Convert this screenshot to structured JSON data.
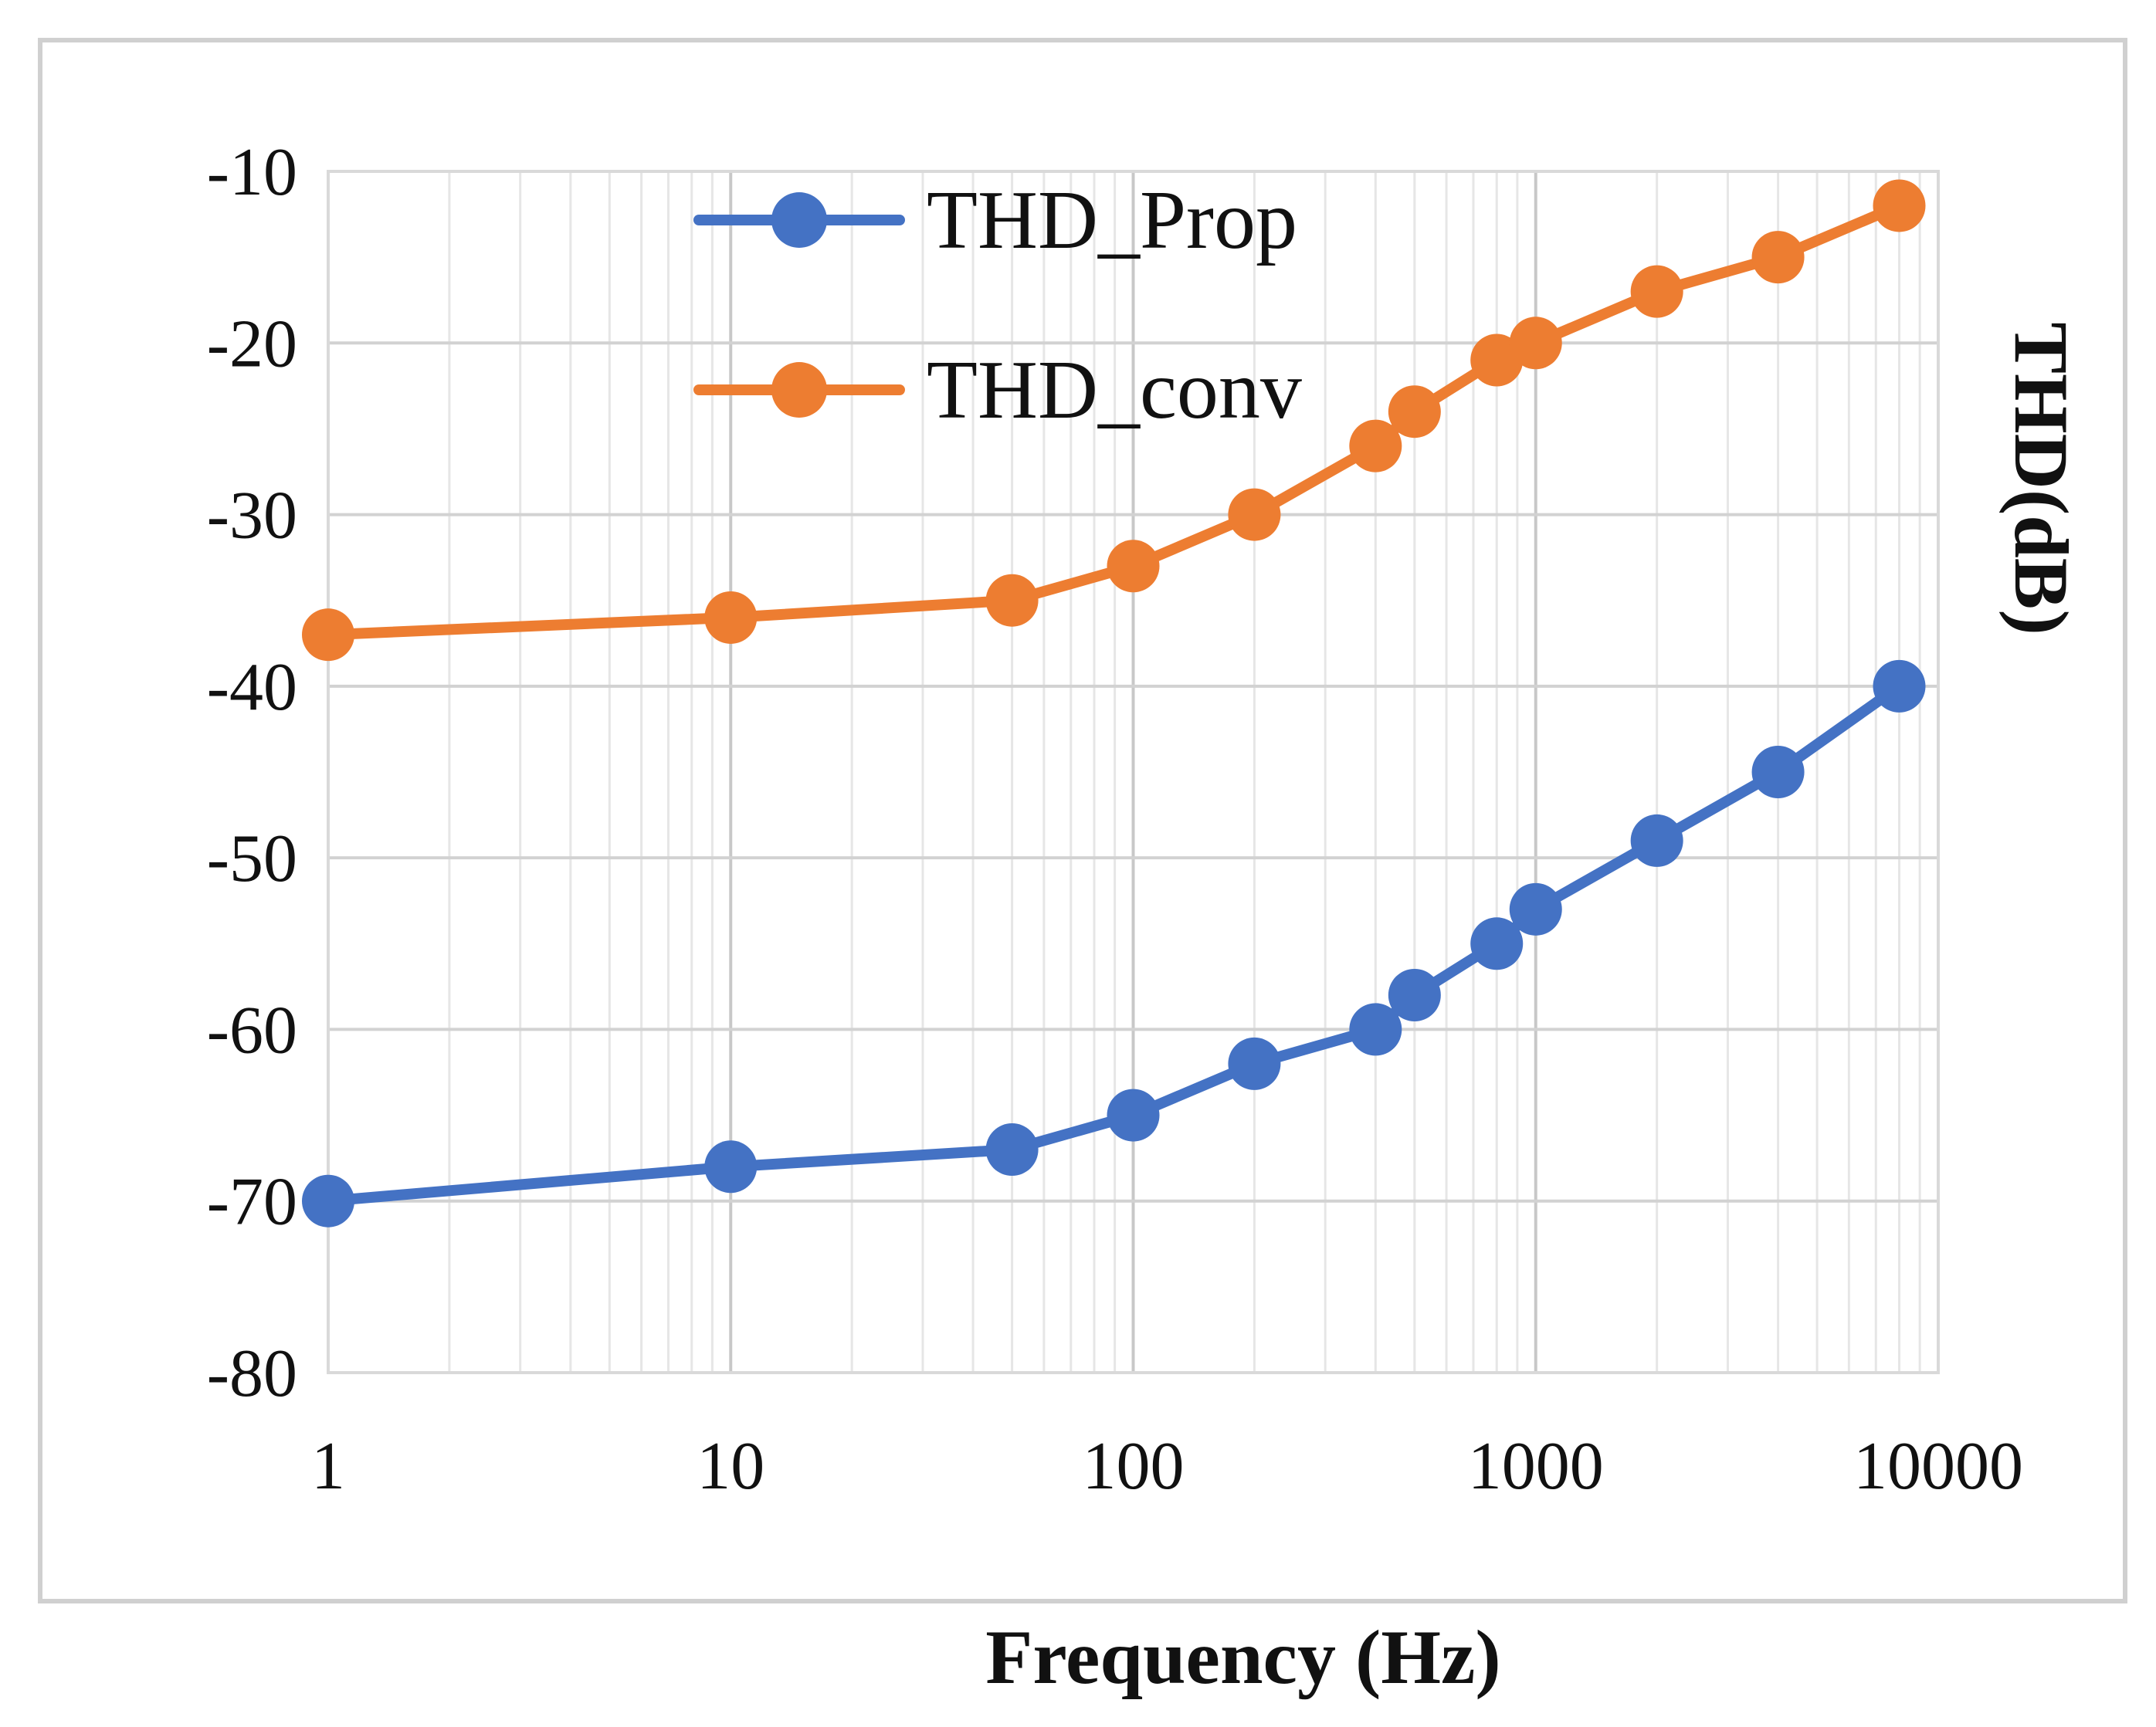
{
  "chart_data": {
    "type": "line",
    "title": "",
    "xlabel": "Frequency (Hz)",
    "ylabel": "THD(dB)",
    "xscale": "log",
    "xlim": [
      1,
      10000
    ],
    "ylim": [
      -80,
      -10
    ],
    "xticks": [
      "1",
      "10",
      "100",
      "1000",
      "10000"
    ],
    "yticks": [
      "-10",
      "-20",
      "-30",
      "-40",
      "-50",
      "-60",
      "-70",
      "-80"
    ],
    "grid": true,
    "legend_position": "top-center",
    "x": [
      1,
      10,
      50,
      100,
      200,
      400,
      500,
      800,
      1000,
      2000,
      4000,
      8000
    ],
    "series": [
      {
        "name": "THD_Prop",
        "color": "#4472C4",
        "values": [
          -70,
          -68,
          -67,
          -65,
          -62,
          -60,
          -58,
          -55,
          -53,
          -49,
          -45,
          -40
        ]
      },
      {
        "name": "THD_conv",
        "color": "#ED7D31",
        "values": [
          -37,
          -36,
          -35,
          -33,
          -30,
          -26,
          -24,
          -21,
          -20,
          -17,
          -15,
          -12
        ]
      }
    ]
  }
}
